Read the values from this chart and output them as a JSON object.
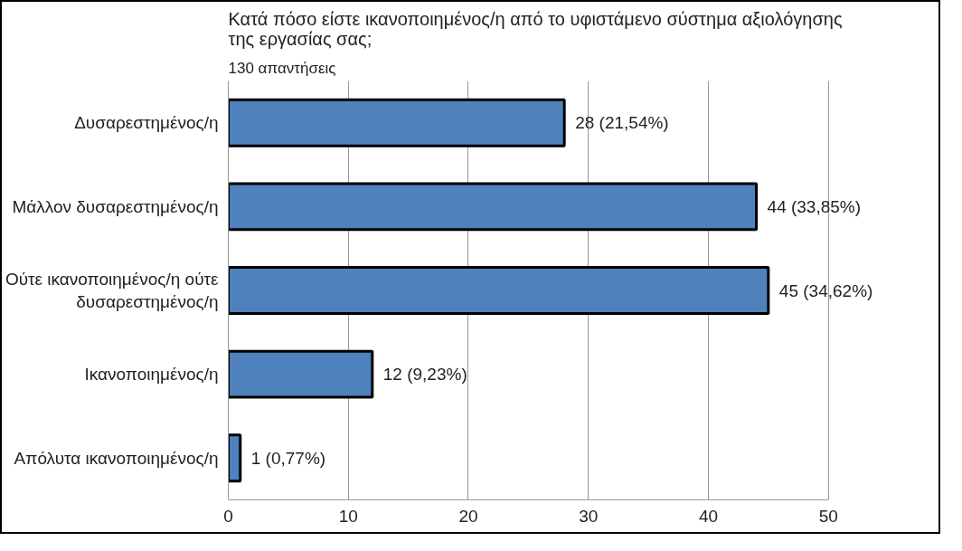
{
  "chart_data": {
    "type": "bar",
    "orientation": "horizontal",
    "title": "Κατά πόσο είστε ικανοποιημένος/η από το υφιστάμενο σύστημα αξιολόγησης της εργασίας σας;",
    "subtitle": "130 απαντήσεις",
    "categories": [
      "Δυσαρεστημένος/η",
      "Μάλλον δυσαρεστημένος/η",
      "Ούτε ικανοποιημένος/η ούτε δυσαρεστημένος/η",
      "Ικανοποιημένος/η",
      "Απόλυτα ικανοποιημένος/η"
    ],
    "values": [
      28,
      44,
      45,
      12,
      1
    ],
    "value_labels": [
      "28 (21,54%)",
      "44 (33,85%)",
      "45 (34,62%)",
      "12 (9,23%)",
      "1 (0,77%)"
    ],
    "color": "#4f81bd",
    "xlim": [
      0,
      50
    ],
    "xticks": [
      0,
      10,
      20,
      30,
      40,
      50
    ],
    "grid": "x"
  }
}
